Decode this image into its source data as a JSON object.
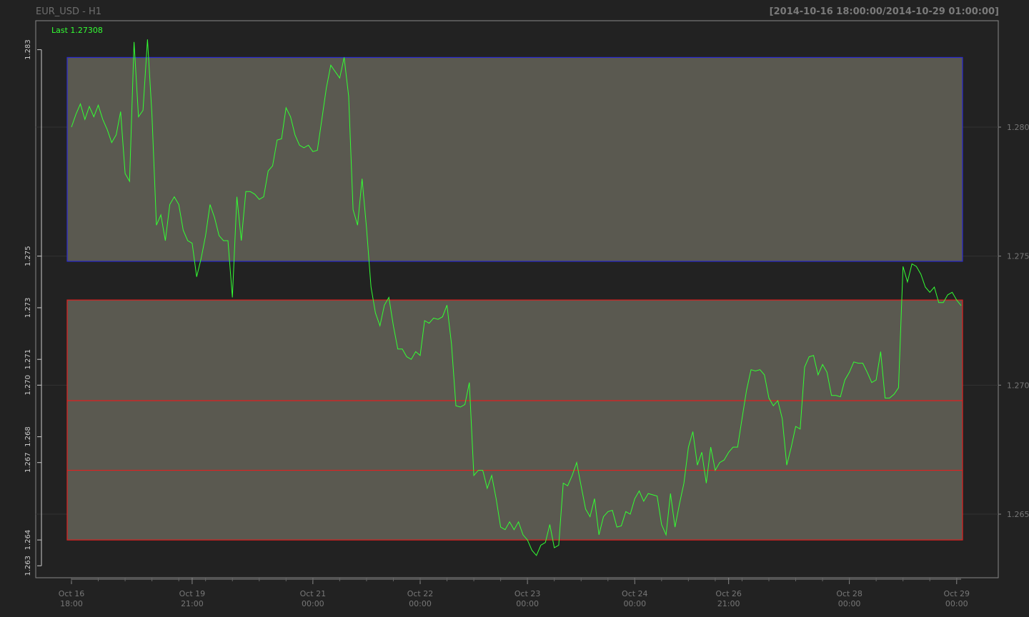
{
  "header": {
    "title": "EUR_USD - H1",
    "range": "[2014-10-16 18:00:00/2014-10-29 01:00:00]",
    "last_label": "Last 1.27308"
  },
  "colors": {
    "background": "#222222",
    "plot_border": "#888888",
    "price_line": "#33ff33",
    "supply_zone_border": "#2a2ad0",
    "demand_zone_border": "#e02020",
    "zone_fill": "#5a5950",
    "grid": "#333333",
    "axis_text": "#777777",
    "left_axis_text": "#cccccc"
  },
  "chart_data": {
    "type": "line",
    "title": "EUR_USD - H1",
    "series": [
      {
        "name": "EUR_USD",
        "x": [
          "2014-10-16 18:00",
          "2014-10-16 19:00",
          "2014-10-16 20:00",
          "2014-10-16 21:00",
          "2014-10-16 22:00",
          "2014-10-16 23:00",
          "2014-10-17 00:00",
          "2014-10-17 01:00",
          "2014-10-17 02:00",
          "2014-10-17 03:00",
          "2014-10-17 04:00",
          "2014-10-17 05:00",
          "2014-10-17 06:00",
          "2014-10-17 07:00",
          "2014-10-17 08:00",
          "2014-10-17 09:00",
          "2014-10-17 10:00",
          "2014-10-17 11:00",
          "2014-10-17 12:00",
          "2014-10-17 13:00",
          "2014-10-17 14:00",
          "2014-10-17 15:00",
          "2014-10-17 16:00",
          "2014-10-17 17:00",
          "2014-10-17 18:00",
          "2014-10-17 19:00",
          "2014-10-17 20:00",
          "2014-10-19 21:00",
          "2014-10-19 22:00",
          "2014-10-19 23:00",
          "2014-10-20 00:00",
          "2014-10-20 01:00",
          "2014-10-20 02:00",
          "2014-10-20 03:00",
          "2014-10-20 04:00",
          "2014-10-20 05:00",
          "2014-10-20 06:00",
          "2014-10-20 07:00",
          "2014-10-20 08:00",
          "2014-10-20 09:00",
          "2014-10-20 10:00",
          "2014-10-20 11:00",
          "2014-10-20 12:00",
          "2014-10-20 13:00",
          "2014-10-20 14:00",
          "2014-10-20 15:00",
          "2014-10-20 16:00",
          "2014-10-20 17:00",
          "2014-10-20 18:00",
          "2014-10-20 19:00",
          "2014-10-20 20:00",
          "2014-10-20 21:00",
          "2014-10-20 22:00",
          "2014-10-20 23:00",
          "2014-10-21 00:00",
          "2014-10-21 01:00",
          "2014-10-21 02:00",
          "2014-10-21 03:00",
          "2014-10-21 04:00",
          "2014-10-21 05:00",
          "2014-10-21 06:00",
          "2014-10-21 07:00",
          "2014-10-21 08:00",
          "2014-10-21 09:00",
          "2014-10-21 10:00",
          "2014-10-21 11:00",
          "2014-10-21 12:00",
          "2014-10-21 13:00",
          "2014-10-21 14:00",
          "2014-10-21 15:00",
          "2014-10-21 16:00",
          "2014-10-21 17:00",
          "2014-10-21 18:00",
          "2014-10-21 19:00",
          "2014-10-21 20:00",
          "2014-10-21 21:00",
          "2014-10-21 22:00",
          "2014-10-21 23:00",
          "2014-10-22 00:00",
          "2014-10-22 01:00",
          "2014-10-22 02:00",
          "2014-10-22 03:00",
          "2014-10-22 04:00",
          "2014-10-22 05:00",
          "2014-10-22 06:00",
          "2014-10-22 07:00",
          "2014-10-22 08:00",
          "2014-10-22 09:00",
          "2014-10-22 10:00",
          "2014-10-22 11:00",
          "2014-10-22 12:00",
          "2014-10-22 13:00",
          "2014-10-22 14:00",
          "2014-10-22 15:00",
          "2014-10-22 16:00",
          "2014-10-22 17:00",
          "2014-10-22 18:00",
          "2014-10-22 19:00",
          "2014-10-22 20:00",
          "2014-10-22 21:00",
          "2014-10-22 22:00",
          "2014-10-22 23:00",
          "2014-10-23 00:00",
          "2014-10-23 01:00",
          "2014-10-23 02:00",
          "2014-10-23 03:00",
          "2014-10-23 04:00",
          "2014-10-23 05:00",
          "2014-10-23 06:00",
          "2014-10-23 07:00",
          "2014-10-23 08:00",
          "2014-10-23 09:00",
          "2014-10-23 10:00",
          "2014-10-23 11:00",
          "2014-10-23 12:00",
          "2014-10-23 13:00",
          "2014-10-23 14:00",
          "2014-10-23 15:00",
          "2014-10-23 16:00",
          "2014-10-23 17:00",
          "2014-10-23 18:00",
          "2014-10-23 19:00",
          "2014-10-23 20:00",
          "2014-10-23 21:00",
          "2014-10-23 22:00",
          "2014-10-23 23:00",
          "2014-10-24 00:00",
          "2014-10-24 01:00",
          "2014-10-24 02:00",
          "2014-10-24 03:00",
          "2014-10-24 04:00",
          "2014-10-24 05:00",
          "2014-10-24 06:00",
          "2014-10-24 07:00",
          "2014-10-24 08:00",
          "2014-10-24 09:00",
          "2014-10-24 10:00",
          "2014-10-24 11:00",
          "2014-10-24 12:00",
          "2014-10-24 13:00",
          "2014-10-24 14:00",
          "2014-10-24 15:00",
          "2014-10-24 16:00",
          "2014-10-24 17:00",
          "2014-10-24 18:00",
          "2014-10-24 19:00",
          "2014-10-24 20:00",
          "2014-10-26 21:00",
          "2014-10-26 22:00",
          "2014-10-26 23:00",
          "2014-10-27 00:00",
          "2014-10-27 01:00",
          "2014-10-27 02:00",
          "2014-10-27 03:00",
          "2014-10-27 04:00",
          "2014-10-27 05:00",
          "2014-10-27 06:00",
          "2014-10-27 07:00",
          "2014-10-27 08:00",
          "2014-10-27 09:00",
          "2014-10-27 10:00",
          "2014-10-27 11:00",
          "2014-10-27 12:00",
          "2014-10-27 13:00",
          "2014-10-27 14:00",
          "2014-10-27 15:00",
          "2014-10-27 16:00",
          "2014-10-27 17:00",
          "2014-10-27 18:00",
          "2014-10-27 19:00",
          "2014-10-27 20:00",
          "2014-10-27 21:00",
          "2014-10-27 22:00",
          "2014-10-27 23:00",
          "2014-10-28 00:00",
          "2014-10-28 01:00",
          "2014-10-28 02:00",
          "2014-10-28 03:00",
          "2014-10-28 04:00",
          "2014-10-28 05:00",
          "2014-10-28 06:00",
          "2014-10-28 07:00",
          "2014-10-28 08:00",
          "2014-10-28 09:00",
          "2014-10-28 10:00",
          "2014-10-28 11:00",
          "2014-10-28 12:00",
          "2014-10-28 13:00",
          "2014-10-28 14:00",
          "2014-10-28 15:00",
          "2014-10-28 16:00",
          "2014-10-28 17:00",
          "2014-10-28 18:00",
          "2014-10-28 19:00",
          "2014-10-28 20:00",
          "2014-10-28 21:00",
          "2014-10-28 22:00",
          "2014-10-28 23:00",
          "2014-10-29 00:00",
          "2014-10-29 01:00"
        ],
        "values": [
          1.28,
          1.2805,
          1.2809,
          1.2803,
          1.2808,
          1.2804,
          1.28085,
          1.2803,
          1.2799,
          1.2794,
          1.2797,
          1.2806,
          1.2782,
          1.2779,
          1.2833,
          1.2804,
          1.28065,
          1.2834,
          1.2805,
          1.2762,
          1.2766,
          1.2756,
          1.277,
          1.2773,
          1.277,
          1.276,
          1.2756,
          1.2755,
          1.2742,
          1.2749,
          1.2758,
          1.277,
          1.2765,
          1.2758,
          1.2756,
          1.2756,
          1.2734,
          1.2773,
          1.2756,
          1.2775,
          1.2775,
          1.2774,
          1.2772,
          1.2773,
          1.2783,
          1.2785,
          1.2795,
          1.27955,
          1.28075,
          1.2804,
          1.2797,
          1.2793,
          1.2792,
          1.2793,
          1.27905,
          1.2791,
          1.2803,
          1.2815,
          1.2824,
          1.28215,
          1.2819,
          1.2827,
          1.2812,
          1.2768,
          1.2762,
          1.278,
          1.2761,
          1.2738,
          1.2728,
          1.2723,
          1.2731,
          1.2734,
          1.2723,
          1.2714,
          1.2714,
          1.2711,
          1.271,
          1.2713,
          1.27115,
          1.2725,
          1.2724,
          1.2726,
          1.27255,
          1.27265,
          1.2731,
          1.2716,
          1.2692,
          1.26915,
          1.26925,
          1.2701,
          1.2665,
          1.2667,
          1.2667,
          1.266,
          1.2665,
          1.2656,
          1.2645,
          1.2644,
          1.2647,
          1.2644,
          1.2647,
          1.2642,
          1.264,
          1.2636,
          1.2634,
          1.2638,
          1.2639,
          1.2646,
          1.2637,
          1.2638,
          1.2662,
          1.2661,
          1.2665,
          1.267,
          1.2661,
          1.2652,
          1.2649,
          1.2656,
          1.2642,
          1.2649,
          1.2651,
          1.26515,
          1.2645,
          1.26455,
          1.2651,
          1.265,
          1.2656,
          1.2659,
          1.2655,
          1.2658,
          1.26575,
          1.2657,
          1.2646,
          1.2642,
          1.2658,
          1.2645,
          1.2654,
          1.2662,
          1.2676,
          1.2682,
          1.2669,
          1.2674,
          1.2662,
          1.2676,
          1.2667,
          1.267,
          1.2671,
          1.2674,
          1.2676,
          1.2676,
          1.2687,
          1.2698,
          1.2706,
          1.27055,
          1.2706,
          1.2704,
          1.2695,
          1.2692,
          1.2694,
          1.2687,
          1.2669,
          1.2676,
          1.2684,
          1.2683,
          1.2707,
          1.2711,
          1.27115,
          1.2704,
          1.2708,
          1.2705,
          1.2696,
          1.2696,
          1.26955,
          1.2702,
          1.2705,
          1.2709,
          1.27085,
          1.27085,
          1.2705,
          1.2701,
          1.2702,
          1.2713,
          1.2695,
          1.2695,
          1.26965,
          1.2699,
          1.2746,
          1.274,
          1.2747,
          1.2746,
          1.2743,
          1.2738,
          1.2736,
          1.2738,
          1.2732,
          1.2732,
          1.2735,
          1.2736,
          1.2733,
          1.27308
        ]
      }
    ],
    "ylim": [
      1.2626,
      1.2842
    ],
    "right_axis_ticks": [
      "1.265",
      "1.270",
      "1.275",
      "1.280"
    ],
    "right_axis_values": [
      1.265,
      1.27,
      1.275,
      1.28
    ],
    "left_axis_ticks": [
      "1.263",
      "1.264",
      "1.267",
      "1.268",
      "1.270",
      "1.271",
      "1.273",
      "1.275",
      "1.283"
    ],
    "left_axis_values": [
      1.263,
      1.264,
      1.267,
      1.268,
      1.27,
      1.271,
      1.273,
      1.275,
      1.283
    ],
    "x_tick_labels": [
      {
        "index": 0,
        "line1": "Oct 16",
        "line2": "18:00"
      },
      {
        "index": 27,
        "line1": "Oct 19",
        "line2": "21:00"
      },
      {
        "index": 54,
        "line1": "Oct 21",
        "line2": "00:00"
      },
      {
        "index": 78,
        "line1": "Oct 22",
        "line2": "00:00"
      },
      {
        "index": 102,
        "line1": "Oct 23",
        "line2": "00:00"
      },
      {
        "index": 126,
        "line1": "Oct 24",
        "line2": "00:00"
      },
      {
        "index": 147,
        "line1": "Oct 26",
        "line2": "21:00"
      },
      {
        "index": 174,
        "line1": "Oct 28",
        "line2": "00:00"
      },
      {
        "index": 198,
        "line1": "Oct 29",
        "line2": "00:00"
      }
    ],
    "zones": [
      {
        "kind": "supply",
        "top": 1.2827,
        "bottom": 1.2748,
        "border": "blue"
      },
      {
        "kind": "demand",
        "top": 1.2733,
        "bottom": 1.264,
        "border": "red"
      }
    ],
    "horizontal_lines": [
      1.2694,
      1.2667
    ],
    "grid": true,
    "legend": "top-left",
    "xlabel": "",
    "ylabel": ""
  }
}
